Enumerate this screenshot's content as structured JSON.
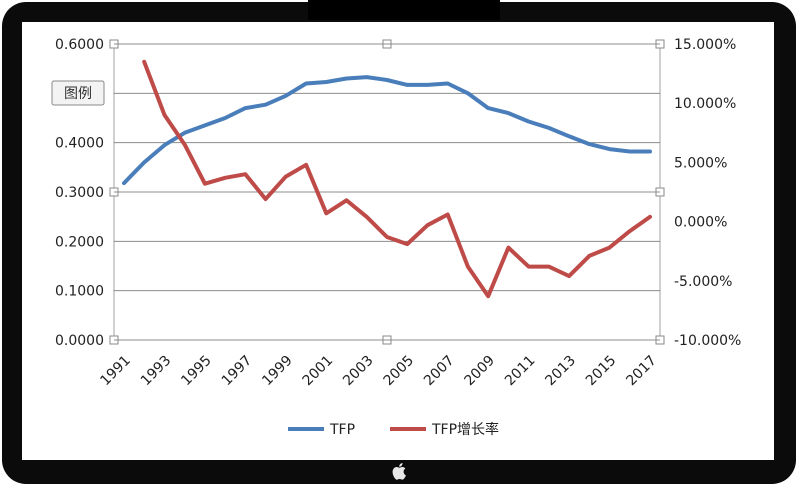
{
  "device": {
    "logo_icon": "apple-icon"
  },
  "tooltip": {
    "label": "图例"
  },
  "chart_data": {
    "type": "line",
    "x": [
      1991,
      1992,
      1993,
      1994,
      1995,
      1996,
      1997,
      1998,
      1999,
      2000,
      2001,
      2002,
      2003,
      2004,
      2005,
      2006,
      2007,
      2008,
      2009,
      2010,
      2011,
      2012,
      2013,
      2014,
      2015,
      2016,
      2017
    ],
    "x_ticks": [
      "1991",
      "1993",
      "1995",
      "1997",
      "1999",
      "2001",
      "2003",
      "2005",
      "2007",
      "2009",
      "2011",
      "2013",
      "2015",
      "2017"
    ],
    "y_ticks_left": [
      "0.0000",
      "0.1000",
      "0.2000",
      "0.3000",
      "0.4000",
      "0.5000",
      "0.6000"
    ],
    "y_ticks_right": [
      "-10.000%",
      "-5.000%",
      "0.000%",
      "5.000%",
      "10.000%",
      "15.000%"
    ],
    "ylim_left": [
      0,
      0.6
    ],
    "ylim_right": [
      -10,
      15
    ],
    "grid": true,
    "legend_position": "bottom",
    "series": [
      {
        "name": "TFP",
        "axis": "left",
        "color": "#4a7ebb",
        "values": [
          0.318,
          0.36,
          0.395,
          0.42,
          0.435,
          0.45,
          0.47,
          0.477,
          0.495,
          0.52,
          0.523,
          0.53,
          0.533,
          0.527,
          0.517,
          0.517,
          0.52,
          0.5,
          0.47,
          0.46,
          0.443,
          0.43,
          0.413,
          0.397,
          0.387,
          0.382,
          0.382
        ]
      },
      {
        "name": "TFP增长率",
        "axis": "right",
        "color": "#be4b48",
        "values": [
          null,
          13.5,
          9.0,
          6.5,
          3.2,
          3.7,
          4.0,
          1.9,
          3.8,
          4.8,
          0.7,
          1.8,
          0.4,
          -1.3,
          -1.9,
          -0.3,
          0.6,
          -3.8,
          -6.3,
          -2.2,
          -3.8,
          -3.8,
          -4.6,
          -2.9,
          -2.2,
          -0.8,
          0.4
        ]
      }
    ]
  }
}
